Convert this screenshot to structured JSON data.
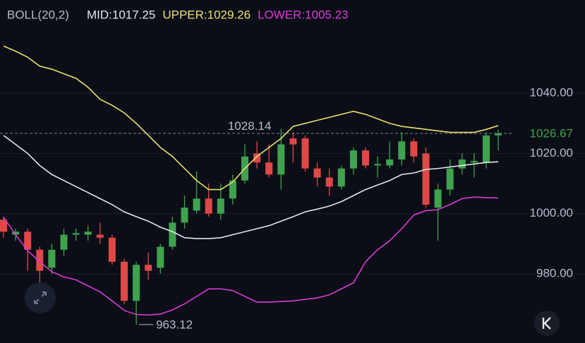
{
  "chart_data": {
    "type": "candlestick",
    "indicator": "BOLL(20,2)",
    "indicator_color": "#b8bcc8",
    "up_color": "#3fa34d",
    "down_color": "#e04848",
    "open": [
      998,
      993,
      994,
      988,
      982,
      988,
      993,
      993,
      993,
      992,
      984,
      971,
      983,
      982,
      989,
      997,
      1001,
      1005,
      1000,
      1005,
      1011,
      1020,
      1017,
      1013,
      1025,
      1025,
      1015,
      1012,
      1009,
      1015,
      1021,
      1016,
      1016,
      1018,
      1024,
      1020,
      1002,
      1008,
      1015,
      1017,
      1017,
      1026
    ],
    "high": [
      999,
      995,
      995,
      989,
      990,
      995,
      995,
      996,
      997,
      993,
      985,
      984,
      987,
      990,
      999,
      1006,
      1014,
      1010,
      1010,
      1013,
      1023,
      1024,
      1023,
      1028.14,
      1027,
      1026,
      1017,
      1015,
      1016,
      1022,
      1022,
      1019,
      1024,
      1027,
      1025,
      1022,
      1010,
      1018,
      1020,
      1020,
      1027,
      1028
    ],
    "low": [
      992,
      991,
      981,
      977,
      980,
      986,
      991,
      991,
      990,
      983,
      970,
      963.12,
      978,
      980,
      988,
      995,
      1000,
      999,
      998,
      1003,
      1010,
      1015,
      1012,
      1008,
      1017,
      1014,
      1009,
      1006,
      1008,
      1013,
      1015,
      1012,
      1015,
      1016,
      1017,
      1002,
      991,
      1006,
      1013,
      1012,
      1015,
      1021
    ],
    "close": [
      994,
      994,
      988,
      981,
      988,
      993,
      993.5,
      994,
      992,
      984,
      971,
      983,
      981,
      989,
      997,
      1002,
      1005,
      1000,
      1005,
      1011,
      1019,
      1017,
      1013,
      1023,
      1023,
      1015,
      1012,
      1009,
      1015,
      1021,
      1016,
      1016.5,
      1018,
      1024,
      1019,
      1003,
      1008,
      1015,
      1018,
      1017.5,
      1026,
      1026.67
    ],
    "series": [
      {
        "name": "MID:1017.25",
        "color": "#e6e6e6",
        "values": [
          1026,
          1023,
          1020,
          1016,
          1013,
          1011,
          1009,
          1007,
          1005,
          1003,
          1000.6,
          999,
          997.5,
          995.5,
          994,
          992,
          991.7,
          991.7,
          992,
          993,
          994,
          995,
          996,
          997.5,
          999,
          1000.6,
          1001.5,
          1002.5,
          1004,
          1006,
          1008,
          1009.5,
          1011,
          1013,
          1013.5,
          1014.7,
          1015,
          1015.5,
          1016,
          1016.5,
          1017,
          1017.25
        ]
      },
      {
        "name": "UPPER:1029.26",
        "color": "#e8e36a",
        "values": [
          1055.7,
          1054,
          1052,
          1049,
          1048,
          1046.5,
          1045,
          1042,
          1038,
          1036,
          1033.5,
          1030,
          1026,
          1022,
          1019,
          1015,
          1011,
          1008,
          1008,
          1010.5,
          1015,
          1019,
          1022,
          1025,
          1029,
          1030,
          1031,
          1032,
          1033,
          1034,
          1033,
          1031.5,
          1030,
          1029,
          1028.5,
          1028,
          1027.5,
          1027,
          1027,
          1027,
          1028,
          1029.26
        ]
      },
      {
        "name": "LOWER:1005.23",
        "color": "#d83bd8",
        "values": [
          998.8,
          993,
          987.7,
          984,
          980.7,
          979,
          978,
          976,
          974,
          971,
          967.8,
          966.5,
          966.3,
          966.6,
          968,
          970,
          972.5,
          975,
          975,
          974.4,
          972.5,
          970.6,
          970.6,
          970.8,
          971,
          971.5,
          972,
          973,
          975,
          977,
          984,
          988,
          991,
          995,
          999.5,
          1001,
          1001.3,
          1003,
          1005,
          1005.5,
          1005.3,
          1005.23
        ]
      }
    ],
    "max_label": 1028.14,
    "min_label": 963.12,
    "last_price": 1026.67,
    "ylim": [
      957,
      1071
    ],
    "yticks": [
      {
        "value": 980,
        "label": "980.00"
      },
      {
        "value": 1000,
        "label": "1000.00"
      },
      {
        "value": 1020,
        "label": "1020.00"
      },
      {
        "value": 1040,
        "label": "1040.00"
      }
    ],
    "grid": true
  }
}
